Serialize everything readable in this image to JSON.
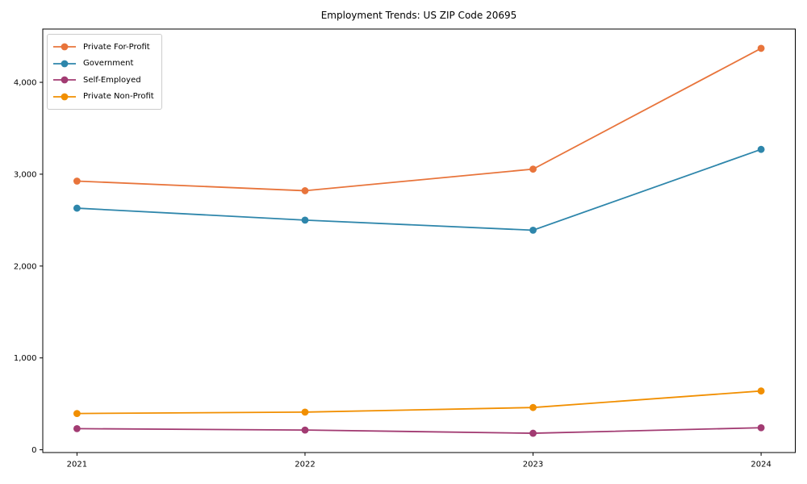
{
  "chart_data": {
    "type": "line",
    "title": "Employment Trends: US ZIP Code 20695",
    "x": [
      2021,
      2022,
      2023,
      2024
    ],
    "xtick_labels": [
      "2021",
      "2022",
      "2023",
      "2024"
    ],
    "series": [
      {
        "name": "Private For-Profit",
        "color": "#E8743B",
        "values": [
          2925,
          2820,
          3055,
          4370
        ]
      },
      {
        "name": "Government",
        "color": "#2E86AB",
        "values": [
          2630,
          2500,
          2390,
          3270
        ]
      },
      {
        "name": "Self-Employed",
        "color": "#A23B72",
        "values": [
          230,
          215,
          180,
          240
        ]
      },
      {
        "name": "Private Non-Profit",
        "color": "#F18F01",
        "values": [
          395,
          410,
          460,
          640
        ]
      }
    ],
    "yticks": {
      "values": [
        0,
        1000,
        2000,
        3000,
        4000
      ],
      "labels": [
        "0",
        "1,000",
        "2,000",
        "3,000",
        "4,000"
      ]
    },
    "xlabel": "",
    "ylabel": "",
    "xlim": [
      2020.85,
      2024.15
    ],
    "ylim": [
      -30,
      4580
    ],
    "grid": false,
    "legend_position": "upper left",
    "marker": "circle",
    "spine_color": "#000000"
  }
}
